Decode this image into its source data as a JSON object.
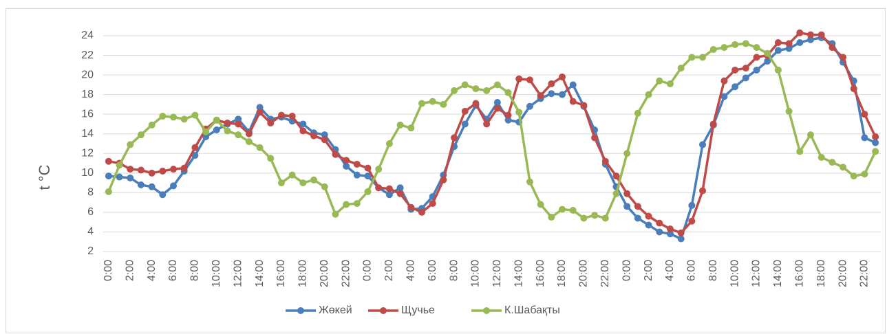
{
  "chart_data": {
    "type": "line",
    "y_label": "t °C",
    "categories": [
      "0:00",
      null,
      "2:00",
      null,
      "4:00",
      null,
      "6:00",
      null,
      "8:00",
      null,
      "10:00",
      null,
      "12:00",
      null,
      "14:00",
      null,
      "16:00",
      null,
      "18:00",
      null,
      "20:00",
      null,
      "22:00",
      null,
      "0:00",
      null,
      "2:00",
      null,
      "4:00",
      null,
      "6:00",
      null,
      "8:00",
      null,
      "10:00",
      null,
      "12:00",
      null,
      "14:00",
      null,
      "16:00",
      null,
      "18:00",
      null,
      "20:00",
      null,
      "22:00",
      null,
      "0:00",
      null,
      "2:00",
      null,
      "4:00",
      null,
      "6:00",
      null,
      "8:00",
      null,
      "10:00",
      null,
      "12:00",
      null,
      "14:00",
      null,
      "16:00",
      null,
      "18:00",
      null,
      "20:00",
      null,
      "22:00",
      null
    ],
    "series": [
      {
        "name": "Жөкей",
        "color": "#4a7ebb",
        "values": [
          9.7,
          9.6,
          9.5,
          8.8,
          8.6,
          7.8,
          8.7,
          10.2,
          11.8,
          13.7,
          14.4,
          15.0,
          15.5,
          14.2,
          16.7,
          15.5,
          15.7,
          15.3,
          15.0,
          14.1,
          13.9,
          12.4,
          10.7,
          9.8,
          9.7,
          8.5,
          7.8,
          8.5,
          6.3,
          6.4,
          7.6,
          9.8,
          12.7,
          15.0,
          16.9,
          15.5,
          17.2,
          15.4,
          15.2,
          16.8,
          17.6,
          18.1,
          18.0,
          19.0,
          16.8,
          14.4,
          10.9,
          8.6,
          6.6,
          5.4,
          4.7,
          4.0,
          3.8,
          3.3,
          6.7,
          12.9,
          14.9,
          17.8,
          18.8,
          19.7,
          20.5,
          21.4,
          22.5,
          22.7,
          23.3,
          23.6,
          23.8,
          23.2,
          21.3,
          19.4,
          13.6,
          13.1
        ]
      },
      {
        "name": "Щучье",
        "color": "#be4b48",
        "values": [
          11.2,
          11.0,
          10.4,
          10.3,
          10.0,
          10.2,
          10.4,
          10.5,
          12.6,
          14.5,
          15.4,
          15.1,
          15.0,
          14.0,
          16.2,
          15.1,
          15.9,
          15.8,
          14.3,
          13.8,
          13.4,
          11.9,
          11.3,
          10.9,
          10.5,
          8.5,
          8.4,
          7.9,
          6.5,
          6.0,
          6.9,
          9.3,
          13.6,
          16.3,
          17.1,
          15.0,
          16.6,
          15.9,
          19.6,
          19.5,
          17.9,
          19.1,
          19.8,
          17.3,
          16.9,
          13.6,
          11.2,
          9.7,
          7.9,
          6.6,
          5.6,
          4.9,
          4.3,
          3.9,
          5.1,
          8.2,
          15.0,
          19.4,
          20.5,
          20.7,
          21.8,
          22.0,
          23.3,
          23.2,
          24.3,
          24.1,
          24.1,
          22.8,
          21.8,
          18.6,
          16.0,
          13.7
        ]
      },
      {
        "name": "К.Шабақты",
        "color": "#98b954",
        "values": [
          8.1,
          10.8,
          12.9,
          13.9,
          14.9,
          15.8,
          15.7,
          15.5,
          15.9,
          14.2,
          15.4,
          14.3,
          13.9,
          13.2,
          12.6,
          11.5,
          9.0,
          9.8,
          9.0,
          9.3,
          8.6,
          5.8,
          6.8,
          6.9,
          8.1,
          10.4,
          13.0,
          14.9,
          14.6,
          17.1,
          17.3,
          17.0,
          18.4,
          19.0,
          18.6,
          18.4,
          19.0,
          18.2,
          16.2,
          9.1,
          6.8,
          5.5,
          6.3,
          6.2,
          5.4,
          5.7,
          5.4,
          7.9,
          12.0,
          16.1,
          18.0,
          19.4,
          19.1,
          20.7,
          21.8,
          21.8,
          22.6,
          22.8,
          23.1,
          23.2,
          22.8,
          22.2,
          20.5,
          16.3,
          12.2,
          13.9,
          11.6,
          11.1,
          10.6,
          9.7,
          9.9,
          12.2
        ]
      }
    ],
    "ylim": [
      2,
      24
    ],
    "yticks": [
      2,
      4,
      6,
      8,
      10,
      12,
      14,
      16,
      18,
      20,
      22,
      24
    ],
    "grid": true,
    "legend": "bottom"
  }
}
